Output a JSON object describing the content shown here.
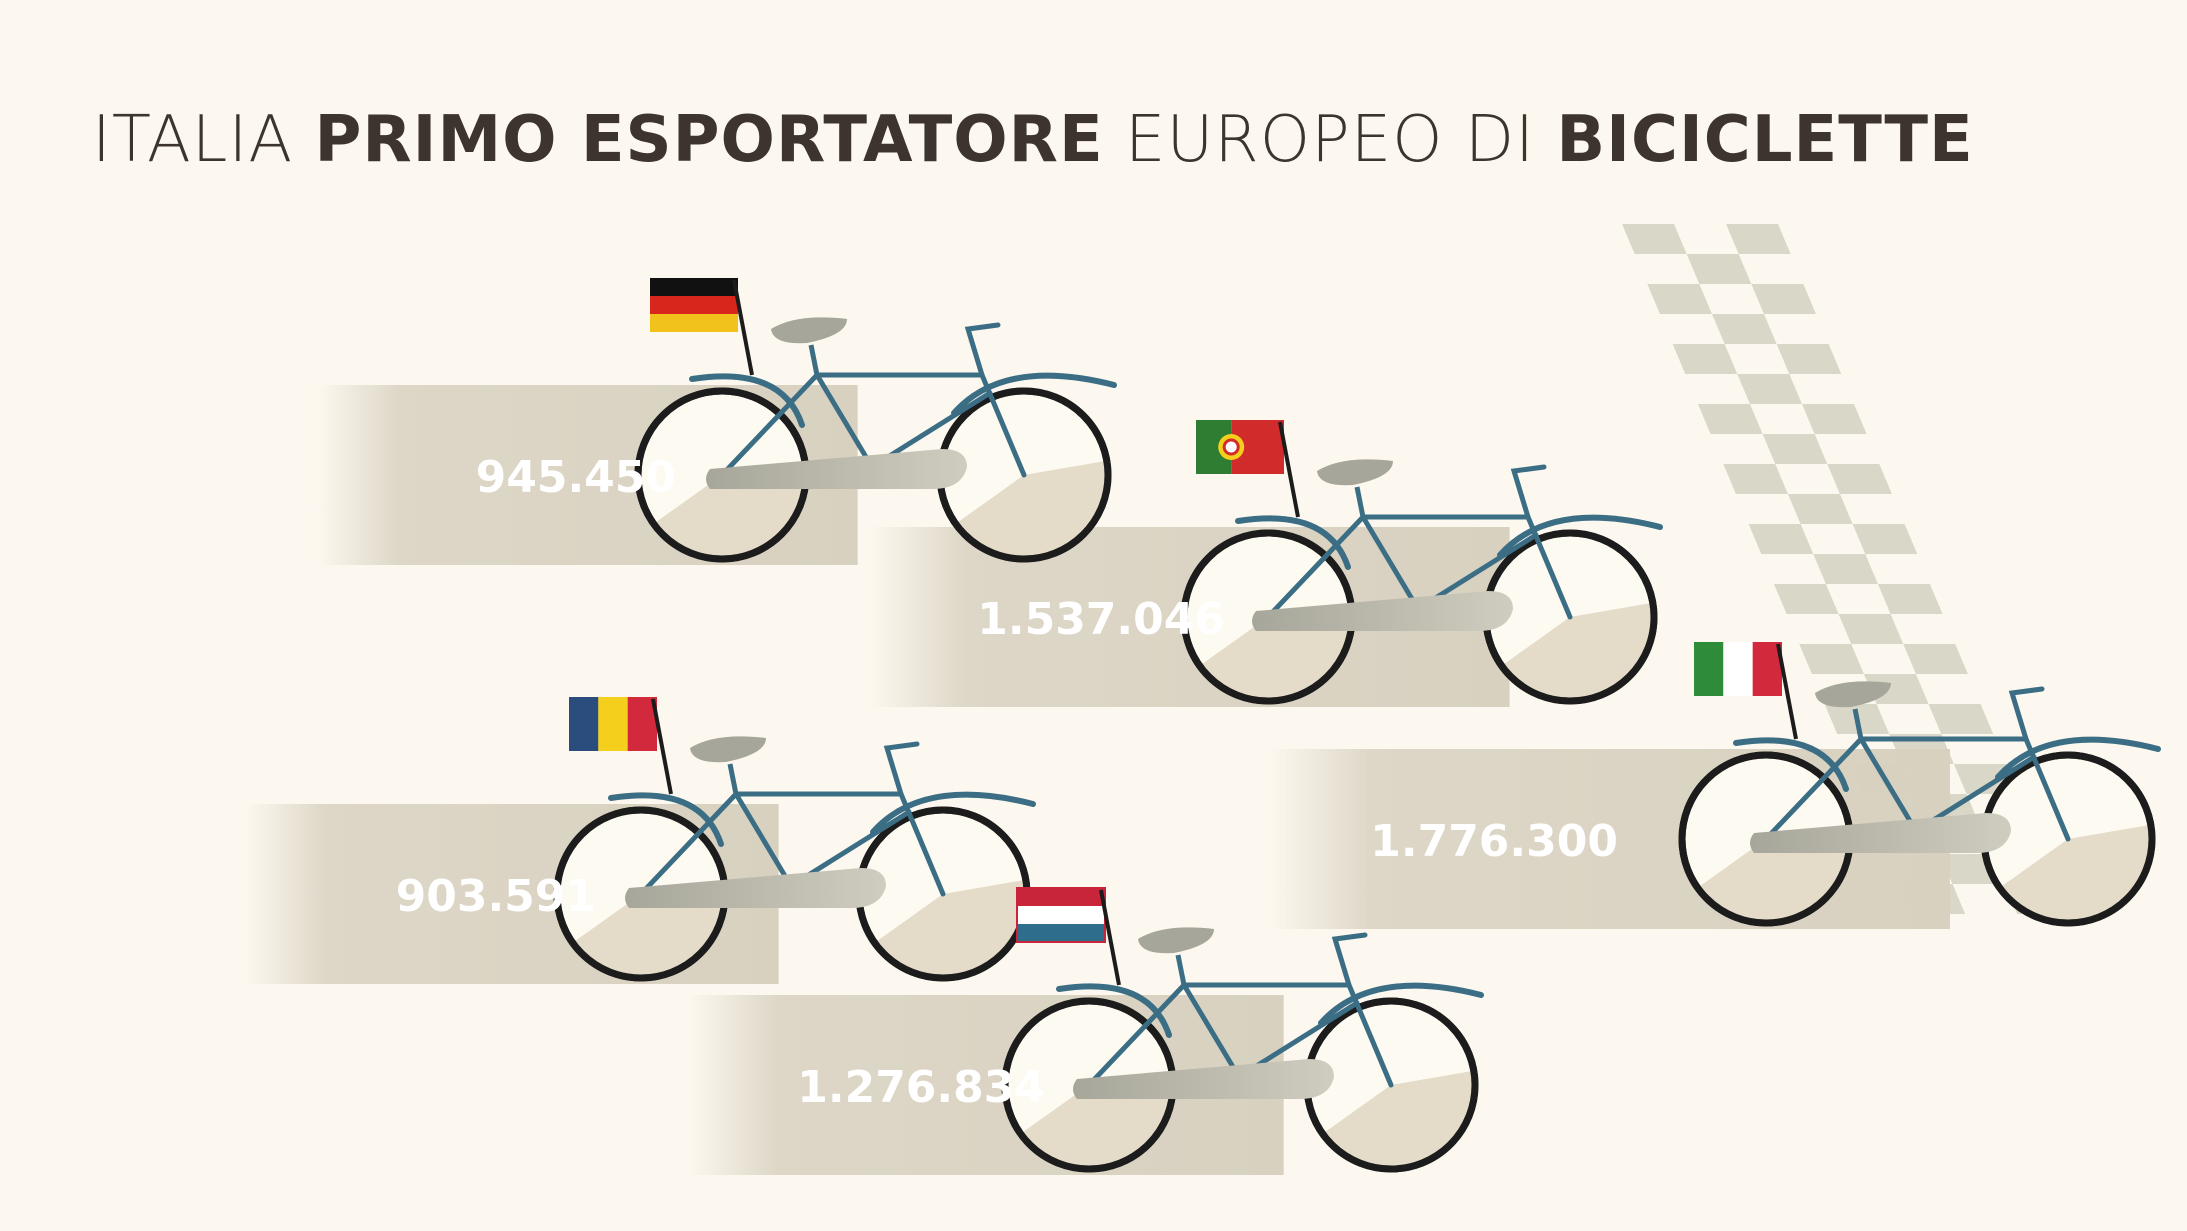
{
  "title": {
    "part1": "ITALIA ",
    "part2": "PRIMO ESPORTATORE",
    "part3": " EUROPEO DI ",
    "part4": "BICICLETTE"
  },
  "colors": {
    "background": "#fcf8ef",
    "trail": "#d8d1c0",
    "frame": "#3b6e85",
    "wheel": "#1c1c1c",
    "seat": "#a7a69a",
    "checker": "#d9d7c8",
    "label": "#ffffff",
    "title": "#3d342d"
  },
  "chart_data": {
    "type": "bar",
    "title": "ITALIA PRIMO ESPORTATORE EUROPEO DI BICICLETTE",
    "xlabel": "",
    "ylabel": "",
    "categories": [
      "germany-flag",
      "portugal-flag",
      "italy-flag",
      "romania-flag",
      "netherlands-flag"
    ],
    "values": [
      945450,
      1537046,
      1776300,
      903591,
      1276834
    ],
    "labels": [
      "945.450",
      "1.537.046",
      "1.776.300",
      "903.591",
      "1.276.834"
    ],
    "legend": "none",
    "grid": false
  }
}
